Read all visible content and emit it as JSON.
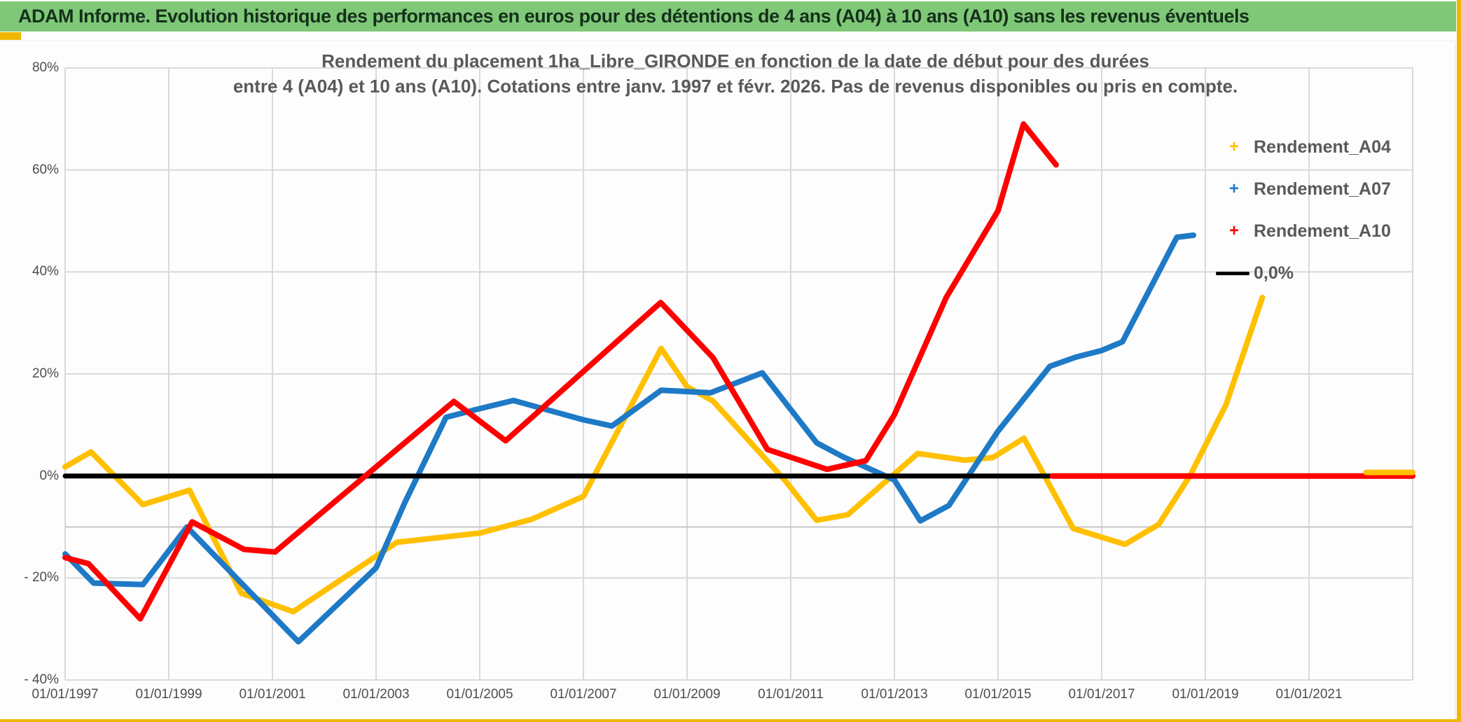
{
  "header": {
    "title": "ADAM Informe. Evolution historique des performances en euros pour des détentions de 4 ans (A04) à 10 ans (A10) sans les revenus éventuels",
    "bg_color": "#7FC878",
    "text_color": "#14301A",
    "border_gold_color": "#EFB700"
  },
  "chart_data": {
    "type": "line",
    "title_line1": "Rendement du placement 1ha_Libre_GIRONDE en fonction de la date de début pour des durées",
    "title_line2": "entre 4 (A04) et 10 ans (A10). Cotations entre janv. 1997 et févr. 2026. Pas de revenus disponibles ou pris en compte.",
    "grid_on": true,
    "plot_bg": "#FFFFFF",
    "gridline_color": "#D9D9D9",
    "extra_gridline_color": "#C6C6C6",
    "x_axis": {
      "range_years": [
        1997.0,
        2023.0
      ],
      "grid_years": [
        1997,
        1999,
        2001,
        2003,
        2005,
        2007,
        2009,
        2011,
        2013,
        2015,
        2017,
        2019,
        2021,
        2023
      ],
      "ticks": [
        {
          "label": "01/01/1997",
          "year": 1997
        },
        {
          "label": "01/01/1999",
          "year": 1999
        },
        {
          "label": "01/01/2001",
          "year": 2001
        },
        {
          "label": "01/01/2003",
          "year": 2003
        },
        {
          "label": "01/01/2005",
          "year": 2005
        },
        {
          "label": "01/01/2007",
          "year": 2007
        },
        {
          "label": "01/01/2009",
          "year": 2009
        },
        {
          "label": "01/01/2011",
          "year": 2011
        },
        {
          "label": "01/01/2013",
          "year": 2013
        },
        {
          "label": "01/01/2015",
          "year": 2015
        },
        {
          "label": "01/01/2017",
          "year": 2017
        },
        {
          "label": "01/01/2019",
          "year": 2019
        },
        {
          "label": "01/01/2021",
          "year": 2021
        }
      ]
    },
    "y_axis": {
      "range_pct": [
        -40,
        80
      ],
      "grid_step_pct": 20,
      "grid_pcts": [
        80,
        60,
        40,
        20,
        -20,
        -40
      ],
      "extra_gridline_pct": -10,
      "ticks": [
        {
          "label": "80%",
          "pct": 80
        },
        {
          "label": "60%",
          "pct": 60
        },
        {
          "label": "40%",
          "pct": 40
        },
        {
          "label": "20%",
          "pct": 20
        },
        {
          "label": "0%",
          "pct": 0
        },
        {
          "label": "- 20%",
          "pct": -20
        },
        {
          "label": "- 40%",
          "pct": -40
        }
      ]
    },
    "legend": [
      {
        "label": "Rendement_A04",
        "marker": "plus",
        "color": "#FFC000"
      },
      {
        "label": "Rendement_A07",
        "marker": "plus",
        "color": "#1E7AC6"
      },
      {
        "label": "Rendement_A10",
        "marker": "plus",
        "color": "#FF0000"
      },
      {
        "label": "0,0%",
        "marker": "line",
        "color": "#000000"
      }
    ],
    "legend_position": "right-top-inside",
    "series": [
      {
        "name": "Rendement_A04",
        "color": "#FFC000",
        "width": 8,
        "segments": [
          {
            "z": 1,
            "points": [
              [
                1997.0,
                1.8
              ],
              [
                1997.5,
                4.7
              ],
              [
                1998.5,
                -5.6
              ],
              [
                1999.4,
                -2.8
              ],
              [
                2000.4,
                -23.0
              ],
              [
                2001.4,
                -26.6
              ],
              [
                2003.4,
                -13.0
              ],
              [
                2005.0,
                -11.2
              ],
              [
                2006.0,
                -8.5
              ],
              [
                2007.0,
                -4.0
              ],
              [
                2008.5,
                25.0
              ],
              [
                2009.0,
                17.5
              ],
              [
                2009.5,
                14.7
              ],
              [
                2010.9,
                -1.0
              ],
              [
                2011.5,
                -8.7
              ],
              [
                2012.1,
                -7.6
              ],
              [
                2013.45,
                4.4
              ],
              [
                2014.35,
                3.1
              ],
              [
                2014.9,
                3.6
              ],
              [
                2015.5,
                7.4
              ],
              [
                2016.45,
                -10.3
              ],
              [
                2017.45,
                -13.4
              ],
              [
                2018.1,
                -9.5
              ],
              [
                2018.7,
                0.0
              ],
              [
                2019.4,
                14.0
              ],
              [
                2020.1,
                35.0
              ]
            ]
          },
          {
            "z": 5,
            "points": [
              [
                2022.1,
                0.7
              ],
              [
                2023.0,
                0.7
              ]
            ]
          }
        ]
      },
      {
        "name": "Rendement_A07",
        "color": "#1E7AC6",
        "width": 8,
        "segments": [
          {
            "z": 2,
            "points": [
              [
                1997.0,
                -15.3
              ],
              [
                1997.55,
                -21.0
              ],
              [
                1998.5,
                -21.3
              ],
              [
                1999.35,
                -10.0
              ],
              [
                2001.5,
                -32.5
              ],
              [
                2003.0,
                -18.0
              ],
              [
                2003.55,
                -5.3
              ],
              [
                2004.35,
                11.5
              ],
              [
                2005.0,
                13.2
              ],
              [
                2005.65,
                14.8
              ],
              [
                2007.0,
                11.0
              ],
              [
                2007.55,
                9.8
              ],
              [
                2008.5,
                16.8
              ],
              [
                2009.45,
                16.3
              ],
              [
                2010.45,
                20.2
              ],
              [
                2011.5,
                6.5
              ],
              [
                2012.0,
                3.8
              ],
              [
                2013.0,
                -0.8
              ],
              [
                2013.5,
                -8.8
              ],
              [
                2014.05,
                -5.8
              ],
              [
                2015.0,
                8.8
              ],
              [
                2016.0,
                21.5
              ],
              [
                2016.5,
                23.3
              ],
              [
                2017.0,
                24.6
              ],
              [
                2017.4,
                26.3
              ],
              [
                2018.45,
                46.8
              ],
              [
                2018.77,
                47.2
              ]
            ]
          }
        ]
      },
      {
        "name": "0,0%",
        "color": "#000000",
        "width": 7,
        "segments": [
          {
            "z": 3,
            "points": [
              [
                1997.0,
                0.0
              ],
              [
                2023.0,
                0.0
              ]
            ]
          }
        ]
      },
      {
        "name": "Rendement_A10",
        "color": "#FF0000",
        "width": 8,
        "segments": [
          {
            "z": 4,
            "points": [
              [
                1997.0,
                -16.0
              ],
              [
                1997.45,
                -17.2
              ],
              [
                1998.45,
                -28.0
              ],
              [
                1999.45,
                -9.0
              ],
              [
                2000.45,
                -14.4
              ],
              [
                2001.05,
                -14.9
              ],
              [
                2004.5,
                14.6
              ],
              [
                2005.5,
                6.9
              ],
              [
                2008.49,
                34.0
              ],
              [
                2009.5,
                23.2
              ],
              [
                2010.55,
                5.2
              ],
              [
                2011.7,
                1.3
              ],
              [
                2012.45,
                3.0
              ],
              [
                2013.0,
                12.0
              ],
              [
                2014.0,
                35.0
              ],
              [
                2015.0,
                52.0
              ],
              [
                2015.49,
                69.0
              ],
              [
                2016.12,
                61.0
              ]
            ]
          },
          {
            "z": 4,
            "points": [
              [
                2016.05,
                0.0
              ],
              [
                2023.0,
                0.0
              ]
            ]
          }
        ]
      }
    ]
  }
}
